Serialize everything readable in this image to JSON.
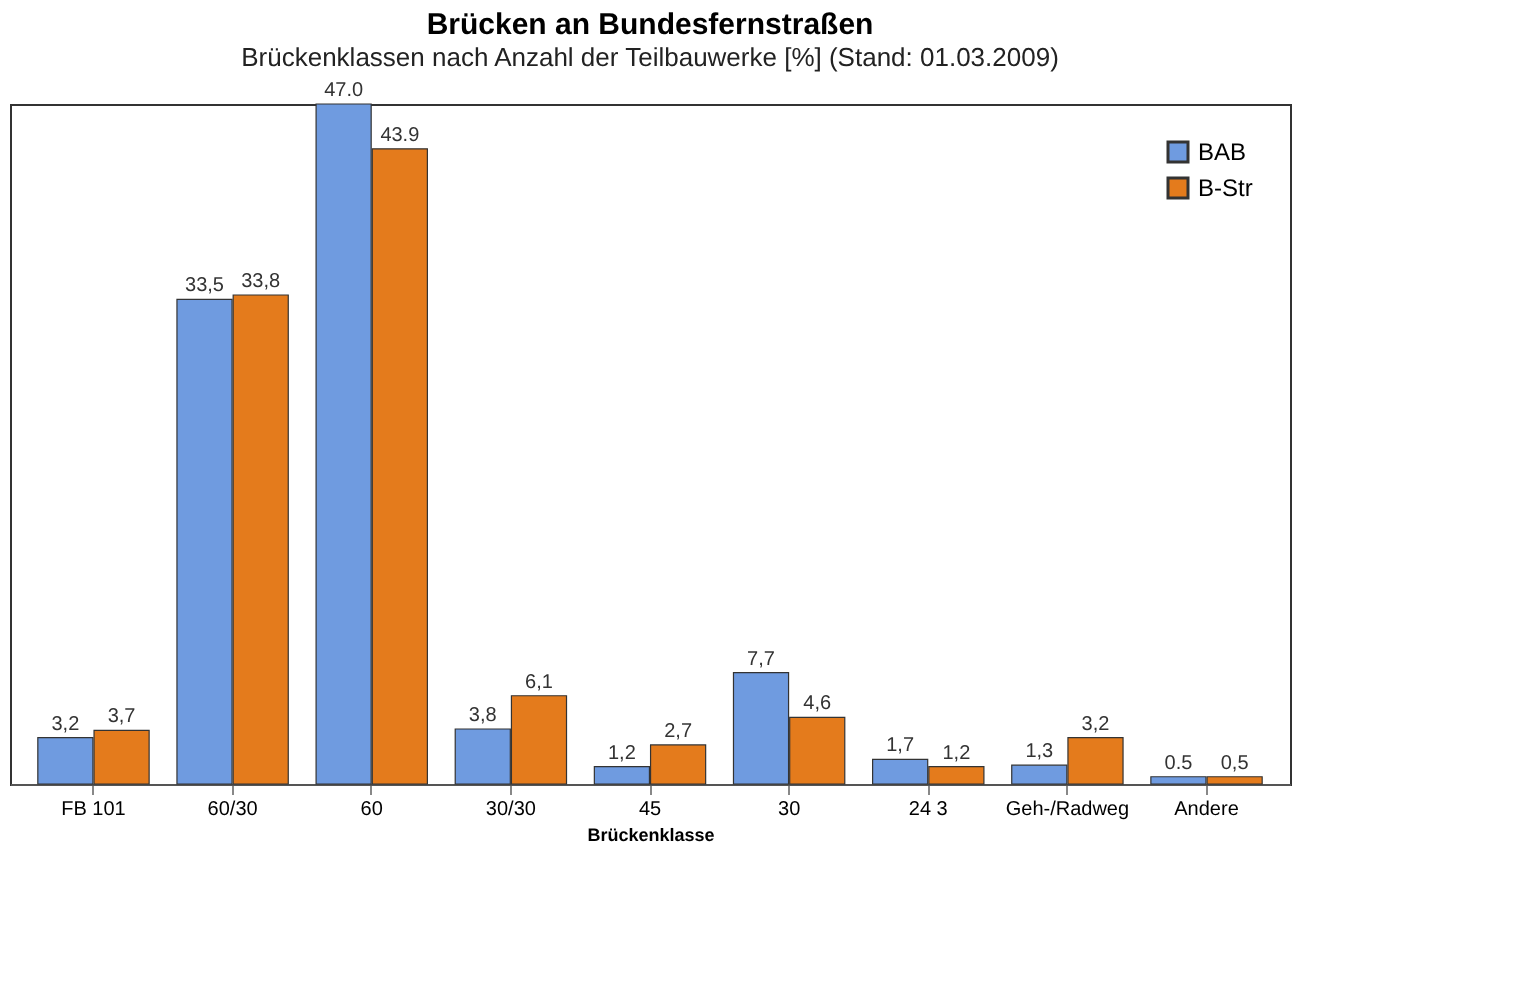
{
  "chart_data": {
    "type": "bar",
    "title": "Brücken an Bundesfernstraßen",
    "subtitle": "Brückenklassen nach Anzahl der Teilbauwerke [%] (Stand: 01.03.2009)",
    "xlabel": "Brückenklasse",
    "categories": [
      "FB 101",
      "60/30",
      "60",
      "30/30",
      "45",
      "30",
      "24   3",
      "Geh-/Radweg",
      "Andere"
    ],
    "series": [
      {
        "name": "BAB",
        "color": "#6f9be0",
        "values": [
          3.2,
          33.5,
          47.0,
          3.8,
          1.2,
          7.7,
          1.7,
          1.3,
          0.5
        ],
        "value_labels": [
          "3,2",
          "33,5",
          "47.0",
          "3,8",
          "1,2",
          "7,7",
          "1,7",
          "1,3",
          "0.5"
        ]
      },
      {
        "name": "B-Str",
        "color": "#e47b1c",
        "values": [
          3.7,
          33.8,
          43.9,
          6.1,
          2.7,
          4.6,
          1.2,
          3.2,
          0.5
        ],
        "value_labels": [
          "3,7",
          "33,8",
          "43.9",
          "6,1",
          "2,7",
          "4,6",
          "1,2",
          "3,2",
          "0,5"
        ]
      }
    ],
    "legend": "top right",
    "grid": false
  }
}
